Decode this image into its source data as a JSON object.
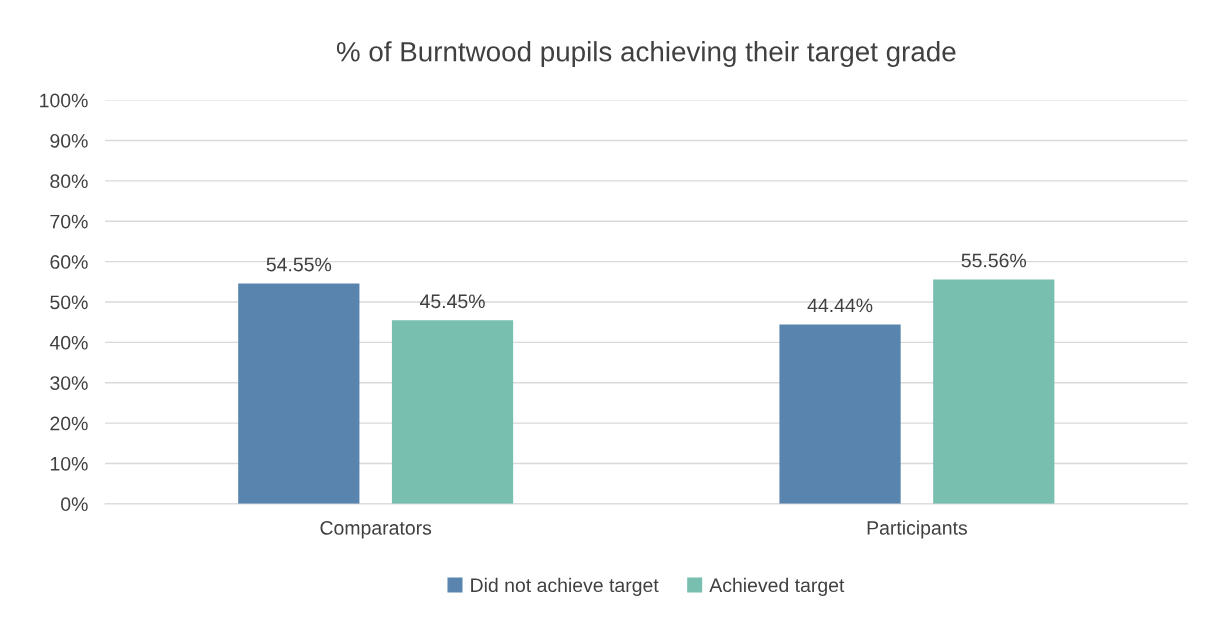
{
  "chart_data": {
    "type": "bar",
    "title": "% of Burntwood pupils achieving their target grade",
    "categories": [
      "Comparators",
      "Participants"
    ],
    "series": [
      {
        "name": "Did not achieve target",
        "color": "#5884ad",
        "values": [
          54.55,
          44.44
        ],
        "value_labels": [
          "54.55%",
          "44.44%"
        ]
      },
      {
        "name": "Achieved target",
        "color": "#78bfb0",
        "values": [
          45.45,
          55.56
        ],
        "value_labels": [
          "45.45%",
          "55.56%"
        ]
      }
    ],
    "ylim": [
      0,
      100
    ],
    "yticks": [
      {
        "value": 0,
        "label": "0%"
      },
      {
        "value": 10,
        "label": "10%"
      },
      {
        "value": 20,
        "label": "20%"
      },
      {
        "value": 30,
        "label": "30%"
      },
      {
        "value": 40,
        "label": "40%"
      },
      {
        "value": 50,
        "label": "50%"
      },
      {
        "value": 60,
        "label": "60%"
      },
      {
        "value": 70,
        "label": "70%"
      },
      {
        "value": 80,
        "label": "80%"
      },
      {
        "value": 90,
        "label": "90%"
      },
      {
        "value": 100,
        "label": "100%"
      }
    ],
    "grid": "y",
    "legend": "bottom"
  }
}
